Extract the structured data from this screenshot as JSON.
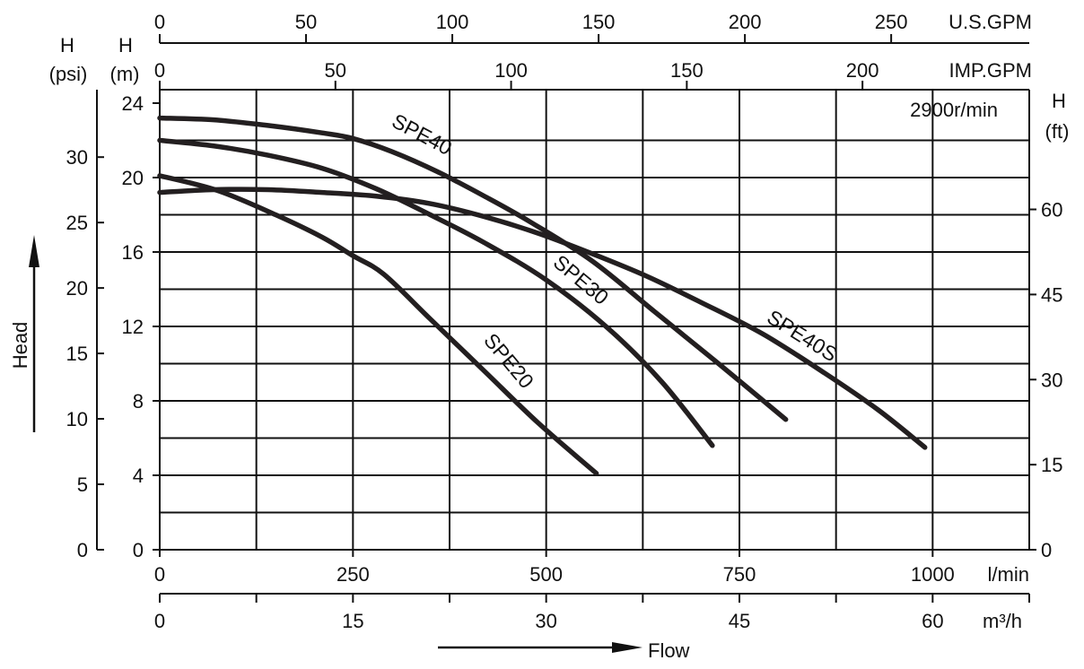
{
  "chart_data": {
    "type": "line",
    "title": "",
    "annotation": "2900r/min",
    "grid": true,
    "legend": "none",
    "x_axes": {
      "primary": {
        "unit": "l/min",
        "range": [
          0,
          1125
        ],
        "ticks": [
          0,
          250,
          500,
          750,
          1000
        ],
        "unit_label": "l/min"
      },
      "m3h": {
        "unit": "m3/h",
        "range": [
          0,
          67.5
        ],
        "ticks": [
          0,
          15,
          30,
          45,
          60
        ],
        "unit_label": "m³/h"
      },
      "usgpm": {
        "unit": "U.S.GPM",
        "range": [
          0,
          295
        ],
        "ticks": [
          0,
          50,
          100,
          150,
          200,
          250
        ],
        "unit_label": "U.S.GPM"
      },
      "impgpm": {
        "unit": "IMP.GPM",
        "range": [
          0,
          245
        ],
        "ticks": [
          0,
          50,
          100,
          150,
          200
        ],
        "unit_label": "IMP.GPM"
      },
      "flow_label": "Flow"
    },
    "y_axes": {
      "m": {
        "unit": "m",
        "range": [
          0,
          24
        ],
        "ticks": [
          0,
          4,
          8,
          12,
          16,
          20,
          24
        ],
        "unit_label_1": "H",
        "unit_label_2": "(m)"
      },
      "psi": {
        "unit": "psi",
        "range": [
          0,
          34.1
        ],
        "ticks": [
          0,
          5,
          10,
          15,
          20,
          25,
          30
        ],
        "unit_label_1": "H",
        "unit_label_2": "(psi)"
      },
      "ft": {
        "unit": "ft",
        "range": [
          0,
          78.7
        ],
        "ticks": [
          0,
          15,
          30,
          45,
          60
        ],
        "unit_label_1": "H",
        "unit_label_2": "(ft)"
      },
      "head_label": "Head"
    },
    "x_unit": "l/min",
    "y_unit": "m",
    "series": [
      {
        "name": "SPE20",
        "x": [
          0,
          75,
          150,
          210,
          250,
          290,
          350,
          420,
          490,
          565
        ],
        "y": [
          20.1,
          19.3,
          18.0,
          16.8,
          15.8,
          14.8,
          12.4,
          9.6,
          6.8,
          4.1
        ]
      },
      {
        "name": "SPE30",
        "x": [
          0,
          70,
          140,
          210,
          280,
          350,
          420,
          500,
          580,
          650,
          715
        ],
        "y": [
          22.0,
          21.7,
          21.2,
          20.5,
          19.4,
          18.0,
          16.5,
          14.5,
          11.9,
          9.0,
          5.6
        ]
      },
      {
        "name": "SPE40",
        "x": [
          0,
          70,
          140,
          210,
          250,
          300,
          360,
          420,
          480,
          560,
          640,
          720,
          810
        ],
        "y": [
          23.2,
          23.1,
          22.8,
          22.4,
          22.1,
          21.4,
          20.3,
          19.0,
          17.6,
          15.5,
          12.8,
          10.1,
          7.0
        ]
      },
      {
        "name": "SPE40S",
        "x": [
          0,
          70,
          140,
          210,
          280,
          350,
          420,
          490,
          560,
          630,
          700,
          780,
          860,
          930,
          990
        ],
        "y": [
          19.2,
          19.35,
          19.35,
          19.2,
          19.0,
          18.6,
          17.9,
          17.0,
          15.9,
          14.7,
          13.3,
          11.6,
          9.5,
          7.5,
          5.5
        ]
      }
    ]
  }
}
